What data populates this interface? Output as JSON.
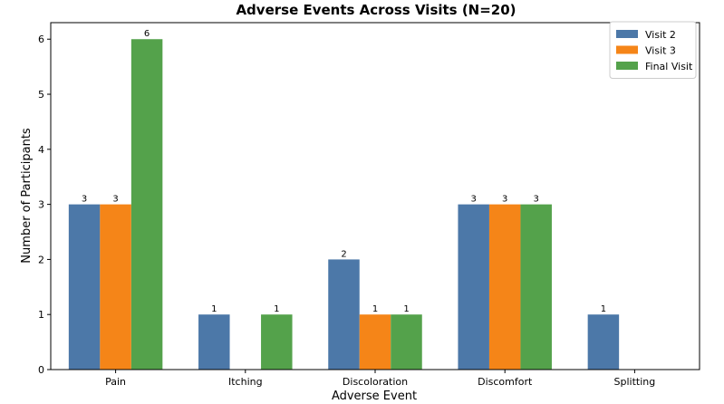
{
  "chart_data": {
    "type": "bar",
    "title": "Adverse Events Across Visits (N=20)",
    "xlabel": "Adverse Event",
    "ylabel": "Number of Participants",
    "categories": [
      "Pain",
      "Itching",
      "Discoloration",
      "Discomfort",
      "Splitting"
    ],
    "series": [
      {
        "name": "Visit 2",
        "color": "#4c78a8",
        "values": [
          3,
          1,
          2,
          3,
          1
        ]
      },
      {
        "name": "Visit 3",
        "color": "#f58518",
        "values": [
          3,
          0,
          1,
          3,
          0
        ]
      },
      {
        "name": "Final Visit",
        "color": "#54a24b",
        "values": [
          6,
          1,
          1,
          3,
          0
        ]
      }
    ],
    "ylim": [
      0,
      6.3
    ],
    "yticks": [
      0,
      1,
      2,
      3,
      4,
      5,
      6
    ],
    "grid": false,
    "legend_position": "top-right"
  }
}
